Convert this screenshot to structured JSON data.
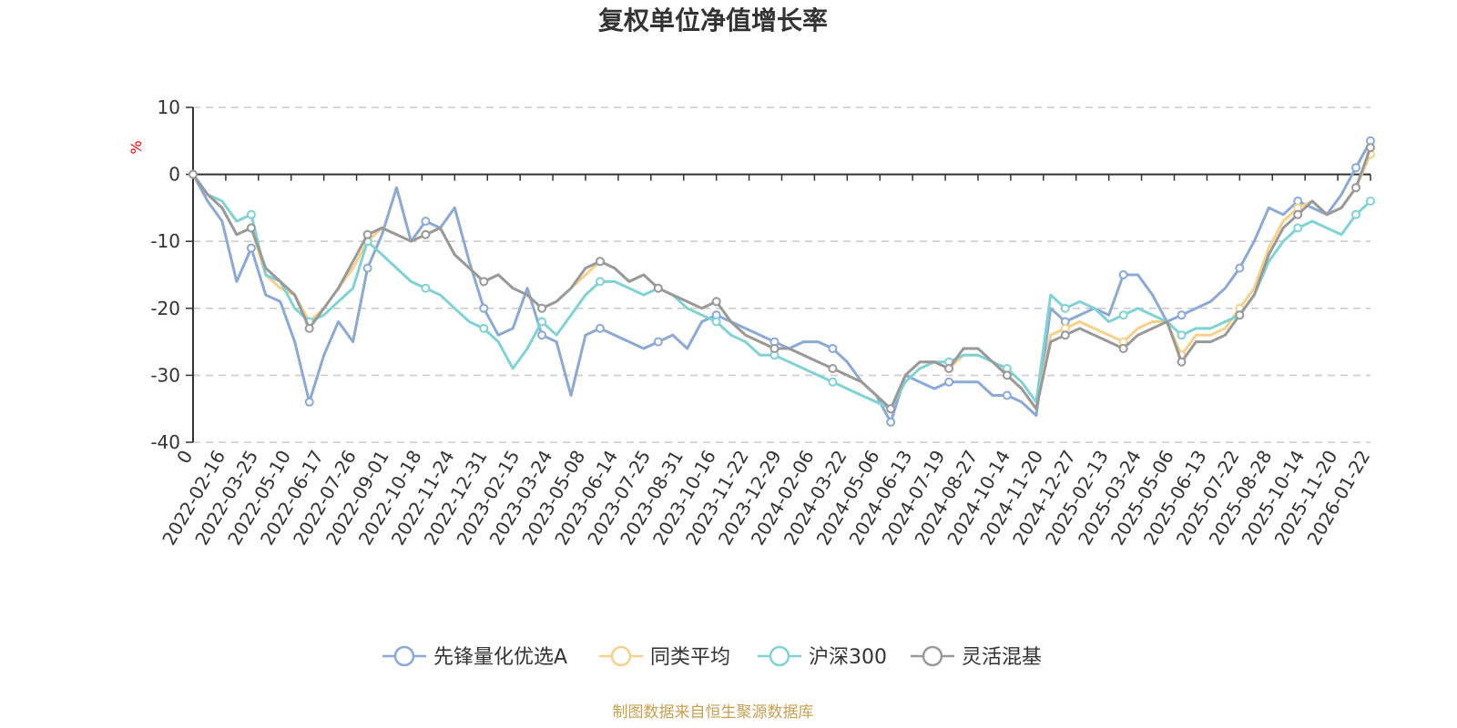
{
  "chart_data": {
    "type": "line",
    "title": "复权单位净值增长率",
    "ylabel": "%",
    "xlabel": "",
    "ylim": [
      -40,
      10
    ],
    "yticks": [
      10,
      0,
      -10,
      -20,
      -30,
      -40
    ],
    "grid": true,
    "legend_position": "bottom",
    "source": "制图数据来自恒生聚源数据库",
    "colors": {
      "ylabel": "#ff0000",
      "source": "#c8a050"
    },
    "x_labels": [
      "0",
      "2022-02-16",
      "2022-03-25",
      "2022-05-10",
      "2022-06-17",
      "2022-07-26",
      "2022-09-01",
      "2022-10-18",
      "2022-11-24",
      "2022-12-31",
      "2023-02-15",
      "2023-03-24",
      "2023-05-08",
      "2023-06-14",
      "2023-07-25",
      "2023-08-31",
      "2023-10-16",
      "2023-11-22",
      "2023-12-29",
      "2024-02-06",
      "2024-03-22",
      "2024-05-06",
      "2024-06-13",
      "2024-07-19",
      "2024-08-27",
      "2024-10-14",
      "2024-11-20",
      "2024-12-27",
      "2025-02-13",
      "2025-03-24",
      "2025-05-06",
      "2025-06-13",
      "2025-07-22",
      "2025-08-28",
      "2025-10-14",
      "2025-11-20",
      "2026-01-22"
    ],
    "series": [
      {
        "name": "先锋量化优选A",
        "color": "#8aa8d8",
        "values": [
          0,
          -4,
          -7,
          -16,
          -11,
          -18,
          -19,
          -25,
          -34,
          -27,
          -22,
          -25,
          -14,
          -9,
          -2,
          -10,
          -7,
          -8,
          -5,
          -13,
          -20,
          -24,
          -23,
          -17,
          -24,
          -25,
          -33,
          -24,
          -23,
          -24,
          -25,
          -26,
          -25,
          -24,
          -26,
          -22,
          -21,
          -22,
          -23,
          -24,
          -25,
          -26,
          -25,
          -25,
          -26,
          -28,
          -31,
          -33,
          -37,
          -30,
          -31,
          -32,
          -31,
          -31,
          -31,
          -33,
          -33,
          -34,
          -36,
          -20,
          -22,
          -21,
          -20,
          -21,
          -15,
          -15,
          -18,
          -22,
          -21,
          -20,
          -19,
          -17,
          -14,
          -10,
          -5,
          -6,
          -4,
          -5,
          -6,
          -3,
          1,
          5
        ]
      },
      {
        "name": "同类平均",
        "color": "#f7d08a",
        "values": [
          0,
          -3,
          -5,
          -9,
          -8,
          -15,
          -17,
          -18,
          -22,
          -20,
          -17,
          -14,
          -10,
          -8,
          -9,
          -10,
          -9,
          -8,
          -12,
          -14,
          -16,
          -15,
          -17,
          -18,
          -20,
          -19,
          -17,
          -15,
          -13,
          -14,
          -16,
          -15,
          -17,
          -18,
          -19,
          -20,
          -19,
          -22,
          -24,
          -25,
          -26,
          -26,
          -27,
          -28,
          -29,
          -30,
          -31,
          -33,
          -35,
          -30,
          -28,
          -28,
          -29,
          -27,
          -27,
          -28,
          -30,
          -32,
          -35,
          -24,
          -23,
          -22,
          -23,
          -24,
          -25,
          -23,
          -22,
          -22,
          -27,
          -24,
          -24,
          -23,
          -20,
          -17,
          -11,
          -7,
          -5,
          -4,
          -6,
          -5,
          -2,
          3
        ]
      },
      {
        "name": "沪深300",
        "color": "#7fd3d4",
        "values": [
          0,
          -3,
          -4,
          -7,
          -6,
          -15,
          -16,
          -20,
          -22,
          -21,
          -19,
          -17,
          -10,
          -12,
          -14,
          -16,
          -17,
          -18,
          -20,
          -22,
          -23,
          -25,
          -29,
          -26,
          -22,
          -24,
          -21,
          -18,
          -16,
          -16,
          -17,
          -18,
          -17,
          -18,
          -20,
          -21,
          -22,
          -24,
          -25,
          -27,
          -27,
          -28,
          -29,
          -30,
          -31,
          -32,
          -33,
          -34,
          -35,
          -31,
          -29,
          -28,
          -28,
          -27,
          -27,
          -28,
          -29,
          -31,
          -34,
          -18,
          -20,
          -19,
          -20,
          -22,
          -21,
          -20,
          -21,
          -22,
          -24,
          -23,
          -23,
          -22,
          -21,
          -18,
          -13,
          -10,
          -8,
          -7,
          -8,
          -9,
          -6,
          -4
        ]
      },
      {
        "name": "灵活混基",
        "color": "#999999",
        "values": [
          0,
          -3,
          -5,
          -9,
          -8,
          -14,
          -16,
          -18,
          -23,
          -20,
          -17,
          -13,
          -9,
          -8,
          -9,
          -10,
          -9,
          -8,
          -12,
          -14,
          -16,
          -15,
          -17,
          -18,
          -20,
          -19,
          -17,
          -14,
          -13,
          -14,
          -16,
          -15,
          -17,
          -18,
          -19,
          -20,
          -19,
          -22,
          -24,
          -25,
          -26,
          -26,
          -27,
          -28,
          -29,
          -30,
          -31,
          -33,
          -35,
          -30,
          -28,
          -28,
          -29,
          -26,
          -26,
          -28,
          -30,
          -32,
          -35,
          -25,
          -24,
          -23,
          -24,
          -25,
          -26,
          -24,
          -23,
          -22,
          -28,
          -25,
          -25,
          -24,
          -21,
          -18,
          -12,
          -8,
          -6,
          -4,
          -6,
          -5,
          -2,
          4
        ]
      }
    ]
  }
}
